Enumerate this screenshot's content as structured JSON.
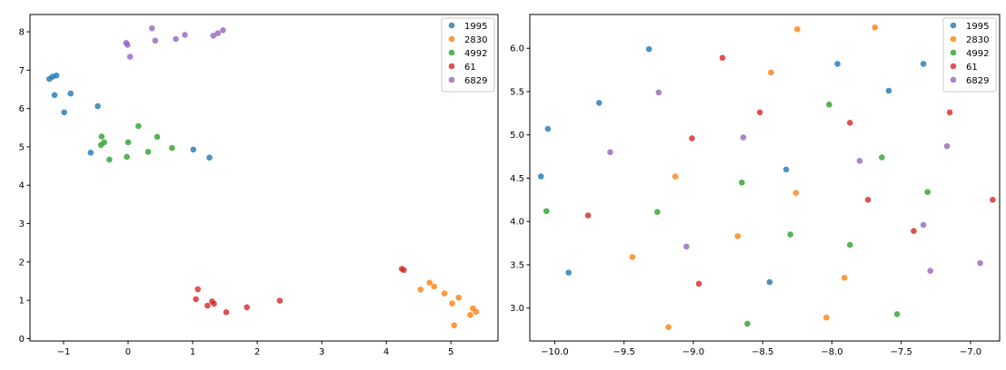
{
  "colors": {
    "1995": "#1f77b4",
    "2830": "#ff7f0e",
    "4992": "#2ca02c",
    "61": "#d62728",
    "6829": "#9467bd"
  },
  "chart_data": [
    {
      "type": "scatter",
      "title": "",
      "xlabel": "",
      "ylabel": "",
      "xlim": [
        -1.52,
        5.73
      ],
      "ylim": [
        -0.06,
        8.45
      ],
      "xticks": [
        -1,
        0,
        1,
        2,
        3,
        4,
        5
      ],
      "yticks": [
        0,
        1,
        2,
        3,
        4,
        5,
        6,
        7,
        8
      ],
      "grid": false,
      "legend": "top-right",
      "series": [
        {
          "name": "1995",
          "color": "#1f77b4",
          "points": [
            [
              -1.22,
              6.77
            ],
            [
              -1.17,
              6.83
            ],
            [
              -1.11,
              6.86
            ],
            [
              -1.14,
              6.35
            ],
            [
              -0.89,
              6.39
            ],
            [
              -0.99,
              5.9
            ],
            [
              -0.47,
              6.06
            ],
            [
              -0.58,
              4.85
            ],
            [
              1.01,
              4.93
            ],
            [
              1.26,
              4.72
            ]
          ]
        },
        {
          "name": "2830",
          "color": "#ff7f0e",
          "points": [
            [
              4.53,
              1.28
            ],
            [
              4.67,
              1.46
            ],
            [
              4.74,
              1.36
            ],
            [
              4.9,
              1.18
            ],
            [
              5.12,
              1.07
            ],
            [
              5.02,
              0.92
            ],
            [
              5.34,
              0.79
            ],
            [
              5.39,
              0.7
            ],
            [
              5.3,
              0.62
            ],
            [
              5.05,
              0.35
            ]
          ]
        },
        {
          "name": "4992",
          "color": "#2ca02c",
          "points": [
            [
              -0.41,
              5.27
            ],
            [
              -0.37,
              5.12
            ],
            [
              -0.42,
              5.05
            ],
            [
              -0.29,
              4.67
            ],
            [
              -0.02,
              4.74
            ],
            [
              0.0,
              5.12
            ],
            [
              0.16,
              5.54
            ],
            [
              0.45,
              5.26
            ],
            [
              0.31,
              4.87
            ],
            [
              0.68,
              4.97
            ]
          ]
        },
        {
          "name": "61",
          "color": "#d62728",
          "points": [
            [
              1.08,
              1.29
            ],
            [
              1.05,
              1.03
            ],
            [
              1.23,
              0.86
            ],
            [
              1.3,
              0.97
            ],
            [
              1.33,
              0.91
            ],
            [
              1.52,
              0.69
            ],
            [
              1.84,
              0.82
            ],
            [
              2.35,
              0.99
            ],
            [
              4.24,
              1.82
            ],
            [
              4.27,
              1.79
            ]
          ]
        },
        {
          "name": "6829",
          "color": "#9467bd",
          "points": [
            [
              -0.03,
              7.71
            ],
            [
              -0.01,
              7.66
            ],
            [
              0.03,
              7.35
            ],
            [
              0.37,
              8.09
            ],
            [
              0.42,
              7.77
            ],
            [
              0.74,
              7.81
            ],
            [
              0.88,
              7.92
            ],
            [
              1.32,
              7.9
            ],
            [
              1.39,
              7.96
            ],
            [
              1.47,
              8.04
            ]
          ]
        }
      ]
    },
    {
      "type": "scatter",
      "title": "",
      "xlabel": "",
      "ylabel": "",
      "xlim": [
        -10.18,
        -6.79
      ],
      "ylim": [
        2.62,
        6.39
      ],
      "xticks": [
        -10.0,
        -9.5,
        -9.0,
        -8.5,
        -8.0,
        -7.5,
        -7.0
      ],
      "xtick_labels": [
        "−10.0",
        "−9.5",
        "−9.0",
        "−8.5",
        "−8.0",
        "−7.5",
        "−7.0"
      ],
      "yticks": [
        3.0,
        3.5,
        4.0,
        4.5,
        5.0,
        5.5,
        6.0
      ],
      "ytick_labels": [
        "3.0",
        "3.5",
        "4.0",
        "4.5",
        "5.0",
        "5.5",
        "6.0"
      ],
      "grid": false,
      "legend": "top-right",
      "series": [
        {
          "name": "1995",
          "color": "#1f77b4",
          "points": [
            [
              -9.32,
              5.99
            ],
            [
              -7.96,
              5.82
            ],
            [
              -7.34,
              5.82
            ],
            [
              -9.68,
              5.37
            ],
            [
              -7.59,
              5.51
            ],
            [
              -10.05,
              5.07
            ],
            [
              -8.33,
              4.6
            ],
            [
              -10.1,
              4.52
            ],
            [
              -9.9,
              3.41
            ],
            [
              -8.45,
              3.3
            ]
          ]
        },
        {
          "name": "2830",
          "color": "#ff7f0e",
          "points": [
            [
              -8.25,
              6.22
            ],
            [
              -7.69,
              6.24
            ],
            [
              -8.44,
              5.72
            ],
            [
              -9.13,
              4.52
            ],
            [
              -8.26,
              4.33
            ],
            [
              -8.68,
              3.83
            ],
            [
              -9.44,
              3.59
            ],
            [
              -7.91,
              3.35
            ],
            [
              -9.18,
              2.78
            ],
            [
              -8.04,
              2.89
            ]
          ]
        },
        {
          "name": "4992",
          "color": "#2ca02c",
          "points": [
            [
              -8.02,
              5.35
            ],
            [
              -7.64,
              4.74
            ],
            [
              -8.65,
              4.45
            ],
            [
              -7.31,
              4.34
            ],
            [
              -10.06,
              4.12
            ],
            [
              -9.26,
              4.11
            ],
            [
              -8.3,
              3.85
            ],
            [
              -7.87,
              3.73
            ],
            [
              -7.53,
              2.93
            ],
            [
              -8.61,
              2.82
            ]
          ]
        },
        {
          "name": "61",
          "color": "#d62728",
          "points": [
            [
              -8.79,
              5.89
            ],
            [
              -8.52,
              5.26
            ],
            [
              -7.15,
              5.26
            ],
            [
              -7.87,
              5.14
            ],
            [
              -9.01,
              4.96
            ],
            [
              -7.74,
              4.25
            ],
            [
              -6.84,
              4.25
            ],
            [
              -9.76,
              4.07
            ],
            [
              -7.41,
              3.89
            ],
            [
              -8.96,
              3.28
            ]
          ]
        },
        {
          "name": "6829",
          "color": "#9467bd",
          "points": [
            [
              -9.25,
              5.49
            ],
            [
              -6.93,
              5.59
            ],
            [
              -8.64,
              4.97
            ],
            [
              -7.17,
              4.87
            ],
            [
              -9.6,
              4.8
            ],
            [
              -7.8,
              4.7
            ],
            [
              -7.34,
              3.96
            ],
            [
              -9.05,
              3.71
            ],
            [
              -7.29,
              3.43
            ],
            [
              -6.93,
              3.52
            ]
          ]
        }
      ]
    }
  ]
}
